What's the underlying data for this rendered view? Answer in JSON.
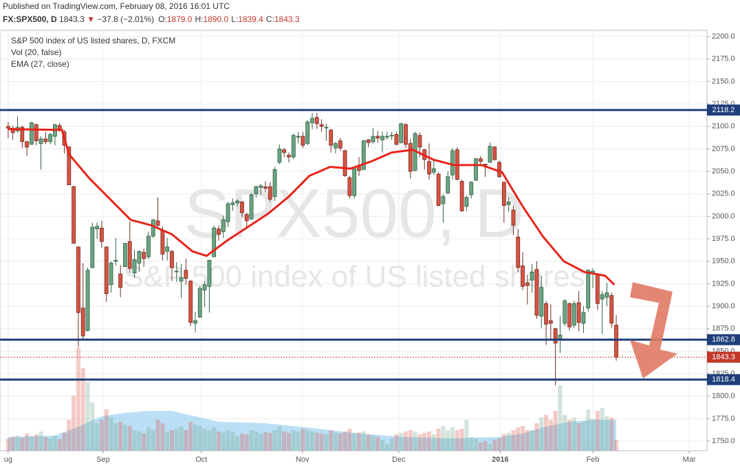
{
  "header": {
    "published": "Published on TradingView.com, February 08, 2016 16:01 UTC",
    "symbol": "FX:SPX500, D",
    "last": "1843.3",
    "arrow": "▼",
    "change": "−37.8 (−2.01%)",
    "quote": [
      {
        "label": "O:",
        "value": "1879.0"
      },
      {
        "label": "H:",
        "value": "1890.0"
      },
      {
        "label": "L:",
        "value": "1839.4"
      },
      {
        "label": "C:",
        "value": "1843.3"
      }
    ]
  },
  "chart_data": {
    "type": "candlestick",
    "title": "S&P 500 index of US listed shares, D, FXCM",
    "watermark": "SPX500, D",
    "watermark_subtitle": "S&P 500 index of US listed shares",
    "up_color": "#6ba583",
    "down_color": "#d75442",
    "grid": true,
    "xlim": [
      -1.75,
      149.4
    ],
    "xticks": [
      {
        "value": 0,
        "label": "ug"
      },
      {
        "value": 20.3,
        "label": "Sep"
      },
      {
        "value": 41.3,
        "label": "Oct"
      },
      {
        "value": 62.9,
        "label": "Nov"
      },
      {
        "value": 83.5,
        "label": "Dec"
      },
      {
        "value": 105.2,
        "label": "2016"
      },
      {
        "value": 125,
        "label": "Feb"
      },
      {
        "value": 145.6,
        "label": "Mar"
      }
    ],
    "ylim": [
      1739.3,
      2206.9
    ],
    "yticks": [
      {
        "value": 1750,
        "label": "1750.0"
      },
      {
        "value": 1775,
        "label": "1775.0"
      },
      {
        "value": 1800,
        "label": "1800.0"
      },
      {
        "value": 1825,
        "label": "1825.0"
      },
      {
        "value": 1850,
        "label": "1850.0"
      },
      {
        "value": 1875,
        "label": "1875.0"
      },
      {
        "value": 1900,
        "label": "1900.0"
      },
      {
        "value": 1925,
        "label": "1925.0"
      },
      {
        "value": 1950,
        "label": "1950.0"
      },
      {
        "value": 1975,
        "label": "1975.0"
      },
      {
        "value": 2000,
        "label": "2000.0"
      },
      {
        "value": 2025,
        "label": "2025.0"
      },
      {
        "value": 2050,
        "label": "2050.0"
      },
      {
        "value": 2075,
        "label": "2075.0"
      },
      {
        "value": 2100,
        "label": "2100.0"
      },
      {
        "value": 2125,
        "label": "2125.0"
      },
      {
        "value": 2150,
        "label": "2150.0"
      },
      {
        "value": 2175,
        "label": "2175.0"
      },
      {
        "value": 2200,
        "label": "2200.0"
      }
    ],
    "ohlc": [
      [
        2100,
        2105,
        2087,
        2098
      ],
      [
        2098,
        2101,
        2085,
        2093
      ],
      [
        2095,
        2111,
        2093,
        2099
      ],
      [
        2099,
        2101,
        2076,
        2083
      ],
      [
        2083,
        2084,
        2067,
        2077
      ],
      [
        2080,
        2105,
        2080,
        2104
      ],
      [
        2102,
        2103,
        2079,
        2084
      ],
      [
        2081,
        2089,
        2052,
        2086
      ],
      [
        2086,
        2094,
        2080,
        2083
      ],
      [
        2083,
        2093,
        2080,
        2091
      ],
      [
        2089,
        2103,
        2079,
        2102
      ],
      [
        2101,
        2104,
        2094,
        2096
      ],
      [
        2094,
        2096,
        2070,
        2079
      ],
      [
        2077,
        2078,
        2035,
        2035
      ],
      [
        2033,
        2034,
        1970,
        1970
      ],
      [
        1966,
        1966,
        1855,
        1893
      ],
      [
        1898,
        1948,
        1864,
        1867
      ],
      [
        1873,
        1943,
        1872,
        1940
      ],
      [
        1943,
        1993,
        1942,
        1988
      ],
      [
        1986,
        1993,
        1975,
        1989
      ],
      [
        1987,
        1995,
        1965,
        1972
      ],
      [
        1966,
        1966,
        1905,
        1914
      ],
      [
        1924,
        1950,
        1915,
        1948
      ],
      [
        1950,
        1976,
        1945,
        1951
      ],
      [
        1936,
        1946,
        1910,
        1921
      ],
      [
        1944,
        1970,
        1944,
        1970
      ],
      [
        1972,
        1994,
        1937,
        1942
      ],
      [
        1937,
        1963,
        1931,
        1952
      ],
      [
        1948,
        1962,
        1938,
        1961
      ],
      [
        1960,
        1964,
        1944,
        1953
      ],
      [
        1955,
        1983,
        1952,
        1978
      ],
      [
        1978,
        1997,
        1976,
        1996
      ],
      [
        1995,
        2021,
        1986,
        1990
      ],
      [
        1984,
        1989,
        1951,
        1958
      ],
      [
        1961,
        1976,
        1951,
        1966
      ],
      [
        1961,
        1963,
        1928,
        1943
      ],
      [
        1939,
        1949,
        1927,
        1939
      ],
      [
        1928,
        1947,
        1909,
        1932
      ],
      [
        1940,
        1953,
        1924,
        1931
      ],
      [
        1928,
        1929,
        1878,
        1882
      ],
      [
        1881,
        1894,
        1871,
        1884
      ],
      [
        1888,
        1922,
        1887,
        1920
      ],
      [
        1918,
        1928,
        1899,
        1924
      ],
      [
        1922,
        1952,
        1893,
        1951
      ],
      [
        1955,
        1990,
        1955,
        1987
      ],
      [
        1986,
        1990,
        1973,
        1980
      ],
      [
        1983,
        2001,
        1976,
        1996
      ],
      [
        1994,
        2016,
        1988,
        2014
      ],
      [
        2013,
        2020,
        2006,
        2015
      ],
      [
        2015,
        2019,
        2011,
        2017
      ],
      [
        2016,
        2017,
        1999,
        2004
      ],
      [
        2002,
        2004,
        1987,
        1995
      ],
      [
        1997,
        2026,
        1996,
        2024
      ],
      [
        2025,
        2034,
        2021,
        2033
      ],
      [
        2032,
        2036,
        2024,
        2034
      ],
      [
        2033,
        2039,
        2027,
        2031
      ],
      [
        2033,
        2038,
        2016,
        2019
      ],
      [
        2022,
        2055,
        2017,
        2052
      ],
      [
        2060,
        2080,
        2058,
        2075
      ],
      [
        2074,
        2076,
        2066,
        2071
      ],
      [
        2068,
        2071,
        2060,
        2066
      ],
      [
        2066,
        2092,
        2064,
        2090
      ],
      [
        2088,
        2094,
        2081,
        2089
      ],
      [
        2089,
        2094,
        2076,
        2079
      ],
      [
        2081,
        2107,
        2079,
        2105
      ],
      [
        2104,
        2115,
        2097,
        2109
      ],
      [
        2110,
        2115,
        2097,
        2103
      ],
      [
        2102,
        2108,
        2094,
        2100
      ],
      [
        2099,
        2103,
        2084,
        2099
      ],
      [
        2096,
        2097,
        2071,
        2079
      ],
      [
        2076,
        2083,
        2070,
        2081
      ],
      [
        2084,
        2087,
        2073,
        2076
      ],
      [
        2073,
        2074,
        2044,
        2045
      ],
      [
        2043,
        2045,
        2020,
        2023
      ],
      [
        2023,
        2054,
        2020,
        2053
      ],
      [
        2055,
        2066,
        2045,
        2051
      ],
      [
        2052,
        2085,
        2052,
        2084
      ],
      [
        2085,
        2086,
        2077,
        2082
      ],
      [
        2083,
        2098,
        2081,
        2089
      ],
      [
        2089,
        2095,
        2082,
        2087
      ],
      [
        2085,
        2094,
        2071,
        2089
      ],
      [
        2088,
        2094,
        2085,
        2089
      ],
      [
        2090,
        2094,
        2085,
        2090
      ],
      [
        2091,
        2094,
        2079,
        2080
      ],
      [
        2082,
        2104,
        2081,
        2103
      ],
      [
        2102,
        2104,
        2076,
        2080
      ],
      [
        2081,
        2086,
        2042,
        2050
      ],
      [
        2051,
        2094,
        2050,
        2092
      ],
      [
        2090,
        2093,
        2066,
        2077
      ],
      [
        2074,
        2075,
        2052,
        2063
      ],
      [
        2061,
        2081,
        2041,
        2047
      ],
      [
        2049,
        2063,
        2046,
        2053
      ],
      [
        2047,
        2049,
        2011,
        2012
      ],
      [
        2014,
        2025,
        1993,
        2022
      ],
      [
        2026,
        2050,
        2025,
        2044
      ],
      [
        2046,
        2076,
        2041,
        2073
      ],
      [
        2074,
        2077,
        2040,
        2041
      ],
      [
        2039,
        2041,
        2005,
        2006
      ],
      [
        2011,
        2023,
        2006,
        2021
      ],
      [
        2024,
        2039,
        2020,
        2038
      ],
      [
        2040,
        2065,
        2040,
        2064
      ],
      [
        2064,
        2067,
        2058,
        2061
      ],
      [
        2058,
        2058,
        2044,
        2057
      ],
      [
        2060,
        2082,
        2060,
        2078
      ],
      [
        2077,
        2078,
        2062,
        2063
      ],
      [
        2060,
        2062,
        2043,
        2044
      ],
      [
        2038,
        2038,
        1993,
        2012
      ],
      [
        2013,
        2021,
        2005,
        2016
      ],
      [
        2007,
        2012,
        1979,
        1990
      ],
      [
        1977,
        1986,
        1938,
        1943
      ],
      [
        1945,
        1960,
        1918,
        1922
      ],
      [
        1926,
        1935,
        1902,
        1923
      ],
      [
        1929,
        1947,
        1915,
        1938
      ],
      [
        1941,
        1950,
        1886,
        1890
      ],
      [
        1889,
        1934,
        1876,
        1921
      ],
      [
        1903,
        1906,
        1857,
        1880
      ],
      [
        1884,
        1902,
        1864,
        1881
      ],
      [
        1875,
        1876,
        1812,
        1859
      ],
      [
        1862,
        1889,
        1848,
        1868
      ],
      [
        1881,
        1908,
        1878,
        1906
      ],
      [
        1903,
        1904,
        1873,
        1877
      ],
      [
        1879,
        1906,
        1876,
        1903
      ],
      [
        1904,
        1917,
        1872,
        1882
      ],
      [
        1881,
        1900,
        1870,
        1893
      ],
      [
        1898,
        1941,
        1894,
        1940
      ],
      [
        1936,
        1942,
        1920,
        1939
      ],
      [
        1935,
        1937,
        1896,
        1903
      ],
      [
        1908,
        1917,
        1869,
        1913
      ],
      [
        1910,
        1926,
        1900,
        1915
      ],
      [
        1912,
        1915,
        1876,
        1881.1
      ],
      [
        1879,
        1890,
        1839.4,
        1843.3
      ]
    ],
    "volume": {
      "name": "Vol (20, false)",
      "ylim": [
        0,
        200
      ],
      "color": "#8ec9ee",
      "values": [
        18,
        20,
        22,
        19,
        25,
        21,
        24,
        28,
        20,
        18,
        22,
        17,
        26,
        45,
        80,
        150,
        120,
        100,
        70,
        40,
        45,
        60,
        48,
        40,
        42,
        38,
        36,
        30,
        28,
        25,
        34,
        30,
        45,
        40,
        28,
        30,
        32,
        35,
        30,
        42,
        38,
        36,
        32,
        30,
        34,
        28,
        26,
        30,
        28,
        22,
        25,
        24,
        30,
        28,
        25,
        27,
        26,
        30,
        35,
        28,
        26,
        30,
        28,
        32,
        30,
        28,
        26,
        25,
        24,
        30,
        26,
        25,
        28,
        32,
        26,
        27,
        28,
        24,
        22,
        20,
        16,
        10,
        18,
        24,
        26,
        28,
        30,
        28,
        24,
        26,
        28,
        24,
        32,
        36,
        30,
        34,
        30,
        32,
        45,
        20,
        18,
        12,
        14,
        10,
        16,
        18,
        24,
        26,
        30,
        34,
        36,
        30,
        30,
        40,
        48,
        52,
        45,
        58,
        95,
        52,
        45,
        48,
        40,
        42,
        60,
        46,
        58,
        62,
        50,
        48,
        16
      ],
      "ma": {
        "x": [
          0,
          10,
          15,
          20,
          25,
          30,
          35,
          40,
          45,
          55,
          65,
          75,
          85,
          95,
          105,
          110,
          115,
          120,
          125,
          130
        ],
        "values": [
          20,
          22,
          35,
          50,
          55,
          58,
          58,
          50,
          42,
          40,
          33,
          25,
          20,
          18,
          20,
          25,
          35,
          42,
          45,
          45
        ]
      }
    },
    "ema": {
      "name": "EMA (27, close)",
      "color": "#e8231a",
      "x": [
        0,
        11.5,
        13,
        17.4,
        21.8,
        26.2,
        30.6,
        35,
        39.4,
        42.4,
        46.8,
        51.2,
        55.6,
        60,
        64.4,
        68.8,
        73.2,
        77.6,
        82,
        86.5,
        90.9,
        95.3,
        101.2,
        105.6,
        110,
        114.4,
        118.8,
        123.2,
        127.6,
        129.6
      ],
      "values": [
        2097,
        2096,
        2069,
        2042,
        2019,
        1996,
        1990,
        1980,
        1961,
        1956,
        1973,
        1988,
        2003,
        2022,
        2045,
        2055,
        2053,
        2061,
        2071,
        2074,
        2063,
        2057,
        2057,
        2049,
        2011,
        1977,
        1950,
        1938,
        1934,
        1924
      ]
    },
    "levels": [
      2118.2,
      1862.8,
      1818.4
    ],
    "level_color": "#1e3f7a",
    "last_price": 1843.3,
    "last_color": "#c0392b"
  }
}
